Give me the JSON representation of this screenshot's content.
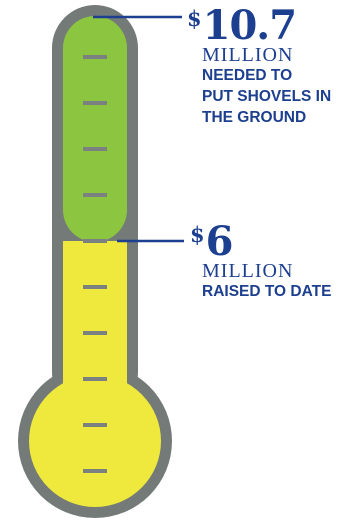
{
  "goal": {
    "currency": "$",
    "amount": "10.7",
    "unit": "MILLION",
    "description": [
      "NEEDED TO",
      "PUT SHOVELS IN",
      "THE GROUND"
    ]
  },
  "raised": {
    "currency": "$",
    "amount": "6",
    "unit": "MILLION",
    "description": [
      "RAISED TO DATE"
    ]
  },
  "progress_fraction": 0.56,
  "colors": {
    "outline": "#737a77",
    "goal_fill": "#8cc540",
    "raised_fill": "#eee93c",
    "tick": "#7a8180",
    "text": "#1d3f8f"
  }
}
